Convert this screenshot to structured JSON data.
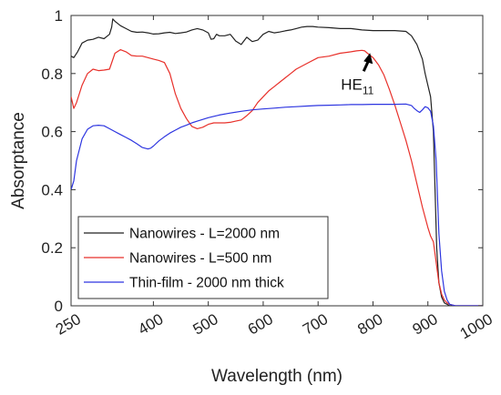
{
  "chart_data": {
    "type": "line",
    "xlabel": "Wavelength (nm)",
    "ylabel": "Absorptance",
    "xlim": [
      250,
      1000
    ],
    "ylim": [
      0,
      1
    ],
    "xticks": [
      250,
      400,
      500,
      600,
      700,
      800,
      900,
      1000
    ],
    "xtick_labels": [
      "250",
      "400",
      "500",
      "600",
      "700",
      "800",
      "900",
      "1000"
    ],
    "yticks": [
      0,
      0.2,
      0.4,
      0.6,
      0.8,
      1
    ],
    "ytick_labels": [
      "0",
      "0.2",
      "0.4",
      "0.6",
      "0.8",
      "1"
    ],
    "grid": false,
    "legend_position": "bottom-left",
    "colors": {
      "black": "#222222",
      "red": "#e8302a",
      "blue": "#2d35e0"
    },
    "annotation": {
      "text": "HE",
      "subscript": "11",
      "x": 783,
      "y": 0.88
    },
    "series": [
      {
        "name": "Nanowires - L=2000 nm",
        "color": "#222222",
        "x": [
          250,
          255,
          262,
          270,
          280,
          290,
          300,
          310,
          320,
          324,
          326,
          330,
          340,
          350,
          360,
          370,
          380,
          390,
          400,
          410,
          420,
          430,
          440,
          450,
          460,
          470,
          480,
          490,
          500,
          505,
          510,
          515,
          520,
          530,
          540,
          550,
          560,
          570,
          580,
          590,
          600,
          610,
          620,
          630,
          640,
          650,
          660,
          670,
          680,
          690,
          700,
          720,
          740,
          760,
          780,
          800,
          820,
          840,
          860,
          870,
          880,
          890,
          895,
          900,
          905,
          910,
          913,
          916,
          920,
          925,
          930,
          935,
          940,
          950,
          960,
          970,
          980,
          990,
          1000
        ],
        "y": [
          0.86,
          0.855,
          0.875,
          0.905,
          0.915,
          0.918,
          0.925,
          0.92,
          0.935,
          0.96,
          0.988,
          0.98,
          0.965,
          0.955,
          0.945,
          0.942,
          0.943,
          0.94,
          0.936,
          0.937,
          0.94,
          0.942,
          0.938,
          0.94,
          0.943,
          0.95,
          0.955,
          0.95,
          0.94,
          0.918,
          0.92,
          0.935,
          0.93,
          0.93,
          0.935,
          0.912,
          0.9,
          0.925,
          0.91,
          0.915,
          0.935,
          0.945,
          0.94,
          0.943,
          0.947,
          0.95,
          0.955,
          0.96,
          0.962,
          0.962,
          0.96,
          0.958,
          0.955,
          0.955,
          0.95,
          0.948,
          0.948,
          0.948,
          0.945,
          0.93,
          0.9,
          0.85,
          0.8,
          0.76,
          0.72,
          0.6,
          0.4,
          0.2,
          0.08,
          0.03,
          0.01,
          0.005,
          0.0,
          0.0,
          0.0,
          0.0,
          0.0,
          0.0,
          0.0
        ]
      },
      {
        "name": "Nanowires - L=500 nm",
        "color": "#e8302a",
        "x": [
          250,
          255,
          260,
          270,
          280,
          290,
          300,
          310,
          320,
          330,
          340,
          350,
          360,
          370,
          380,
          390,
          400,
          410,
          420,
          430,
          440,
          450,
          460,
          470,
          480,
          490,
          500,
          510,
          520,
          530,
          540,
          550,
          560,
          570,
          580,
          590,
          600,
          610,
          620,
          630,
          640,
          650,
          660,
          680,
          700,
          720,
          740,
          760,
          770,
          780,
          785,
          790,
          800,
          810,
          820,
          830,
          840,
          850,
          860,
          870,
          880,
          890,
          900,
          905,
          910,
          915,
          920,
          925,
          930,
          935,
          940,
          950,
          960,
          970,
          980,
          990,
          1000
        ],
        "y": [
          0.72,
          0.68,
          0.7,
          0.76,
          0.8,
          0.815,
          0.81,
          0.812,
          0.815,
          0.87,
          0.882,
          0.875,
          0.862,
          0.86,
          0.86,
          0.855,
          0.85,
          0.845,
          0.838,
          0.8,
          0.73,
          0.68,
          0.645,
          0.618,
          0.61,
          0.615,
          0.625,
          0.63,
          0.63,
          0.63,
          0.632,
          0.636,
          0.64,
          0.655,
          0.672,
          0.7,
          0.72,
          0.74,
          0.755,
          0.77,
          0.785,
          0.8,
          0.815,
          0.835,
          0.855,
          0.86,
          0.87,
          0.875,
          0.878,
          0.88,
          0.878,
          0.87,
          0.855,
          0.83,
          0.795,
          0.745,
          0.69,
          0.63,
          0.57,
          0.5,
          0.42,
          0.34,
          0.27,
          0.24,
          0.22,
          0.15,
          0.08,
          0.04,
          0.02,
          0.01,
          0.005,
          0.0,
          0.0,
          0.0,
          0.0,
          0.0,
          0.0
        ]
      },
      {
        "name": "Thin-film - 2000 nm thick",
        "color": "#2d35e0",
        "x": [
          250,
          255,
          260,
          270,
          280,
          290,
          300,
          310,
          320,
          330,
          340,
          350,
          360,
          370,
          380,
          390,
          395,
          400,
          410,
          420,
          430,
          440,
          450,
          460,
          470,
          480,
          500,
          520,
          540,
          560,
          580,
          600,
          620,
          640,
          660,
          680,
          700,
          720,
          740,
          760,
          780,
          800,
          820,
          840,
          860,
          870,
          875,
          880,
          885,
          890,
          895,
          900,
          905,
          910,
          915,
          918,
          920,
          925,
          930,
          935,
          940,
          950,
          960,
          970,
          980,
          990,
          1000
        ],
        "y": [
          0.4,
          0.43,
          0.5,
          0.575,
          0.608,
          0.62,
          0.622,
          0.62,
          0.61,
          0.6,
          0.59,
          0.58,
          0.57,
          0.558,
          0.545,
          0.54,
          0.543,
          0.55,
          0.568,
          0.582,
          0.595,
          0.605,
          0.615,
          0.622,
          0.63,
          0.636,
          0.648,
          0.657,
          0.664,
          0.67,
          0.675,
          0.678,
          0.681,
          0.684,
          0.686,
          0.688,
          0.69,
          0.691,
          0.692,
          0.693,
          0.693,
          0.694,
          0.694,
          0.694,
          0.695,
          0.69,
          0.68,
          0.672,
          0.666,
          0.675,
          0.686,
          0.682,
          0.67,
          0.62,
          0.5,
          0.35,
          0.25,
          0.12,
          0.05,
          0.02,
          0.005,
          0.0,
          0.0,
          0.0,
          0.0,
          0.0,
          0.0
        ]
      }
    ]
  }
}
